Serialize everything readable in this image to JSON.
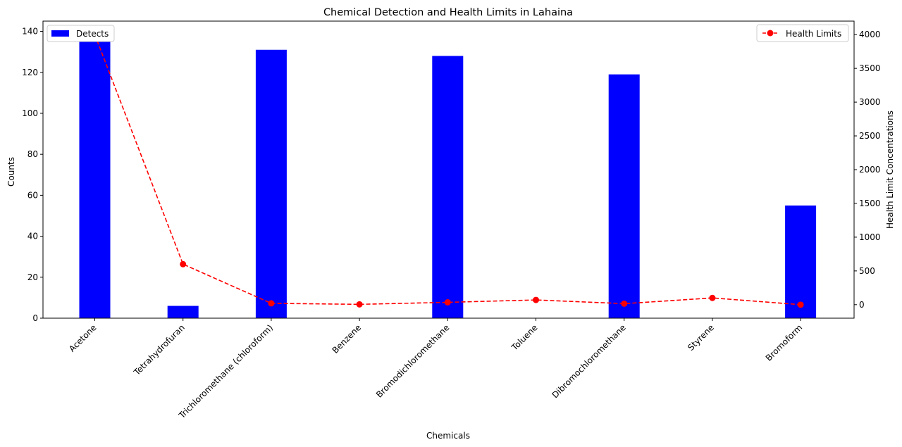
{
  "chart_data": {
    "type": "bar",
    "title": "Chemical Detection and Health Limits in Lahaina",
    "xlabel": "Chemicals",
    "ylabel": "Counts",
    "y2label": "Health Limit Concentrations",
    "categories": [
      "Acetone",
      "Tetrahydrofuran",
      "Trichloromethane (chloroform)",
      "Benzene",
      "Bromodichloromethane",
      "Toluene",
      "Dibromochloromethane",
      "Styrene",
      "Bromoform"
    ],
    "series": [
      {
        "name": "Detects",
        "type": "bar",
        "axis": "left",
        "color": "#0000ff",
        "values": [
          138,
          6,
          131,
          0,
          128,
          0,
          119,
          0,
          55
        ]
      },
      {
        "name": "Health Limits",
        "type": "line",
        "axis": "right",
        "color": "#ff0000",
        "line_style": "dashed",
        "marker": "circle",
        "values": [
          4000,
          600,
          20,
          5,
          35,
          70,
          15,
          100,
          0
        ]
      }
    ],
    "ylim": [
      0,
      145
    ],
    "y2lim": [
      -200,
      4200
    ],
    "yticks": [
      0,
      20,
      40,
      60,
      80,
      100,
      120,
      140
    ],
    "y2ticks": [
      0,
      500,
      1000,
      1500,
      2000,
      2500,
      3000,
      3500,
      4000
    ],
    "grid": false,
    "legend_bar_position": "upper-left",
    "legend_line_position": "upper-right"
  }
}
